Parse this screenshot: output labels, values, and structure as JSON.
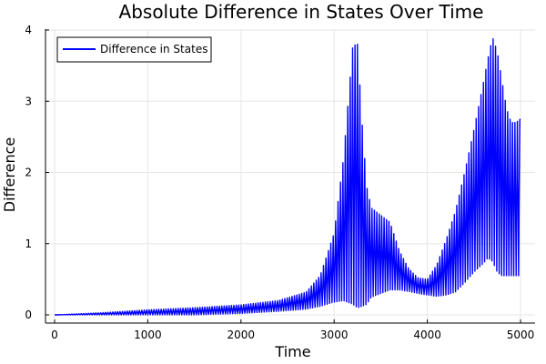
{
  "chart_data": {
    "type": "line",
    "title": "Absolute Difference in States Over Time",
    "xlabel": "Time",
    "ylabel": "Difference",
    "xlim": [
      0,
      5000
    ],
    "ylim": [
      0,
      4
    ],
    "xticks": [
      0,
      1000,
      2000,
      3000,
      4000,
      5000
    ],
    "yticks": [
      0,
      1,
      2,
      3,
      4
    ],
    "grid": true,
    "legend_position": "top-left",
    "series": [
      {
        "name": "Difference in States",
        "color": "#0000ff",
        "envelope": {
          "x": [
            0,
            500,
            1000,
            1500,
            2000,
            2400,
            2700,
            2850,
            3000,
            3100,
            3200,
            3250,
            3300,
            3350,
            3400,
            3500,
            3600,
            3700,
            3800,
            3900,
            4000,
            4100,
            4200,
            4300,
            4400,
            4500,
            4600,
            4650,
            4700,
            4750,
            4800,
            4850,
            4900,
            4950,
            5000
          ],
          "upper": [
            0.0,
            0.03,
            0.07,
            0.1,
            0.14,
            0.2,
            0.32,
            0.55,
            1.15,
            2.2,
            3.78,
            3.8,
            2.7,
            1.8,
            1.5,
            1.4,
            1.3,
            0.9,
            0.65,
            0.52,
            0.5,
            0.7,
            1.05,
            1.45,
            2.0,
            2.6,
            3.25,
            3.6,
            3.9,
            3.7,
            3.3,
            2.9,
            2.7,
            2.7,
            2.75
          ],
          "lower": [
            0.0,
            0.0,
            0.0,
            0.0,
            0.02,
            0.05,
            0.08,
            0.12,
            0.18,
            0.2,
            0.15,
            0.1,
            0.12,
            0.15,
            0.25,
            0.3,
            0.35,
            0.35,
            0.33,
            0.3,
            0.28,
            0.26,
            0.28,
            0.32,
            0.45,
            0.6,
            0.72,
            0.8,
            0.75,
            0.6,
            0.55,
            0.55,
            0.55,
            0.55,
            0.55
          ],
          "mid": [
            0.0,
            0.015,
            0.035,
            0.05,
            0.08,
            0.12,
            0.2,
            0.33,
            0.65,
            1.2,
            1.95,
            1.95,
            1.4,
            1.0,
            0.85,
            0.85,
            0.8,
            0.62,
            0.5,
            0.42,
            0.38,
            0.46,
            0.65,
            0.88,
            1.2,
            1.6,
            2.0,
            2.2,
            2.3,
            2.15,
            1.95,
            1.9,
            2.0,
            2.05,
            2.1
          ]
        }
      }
    ]
  }
}
